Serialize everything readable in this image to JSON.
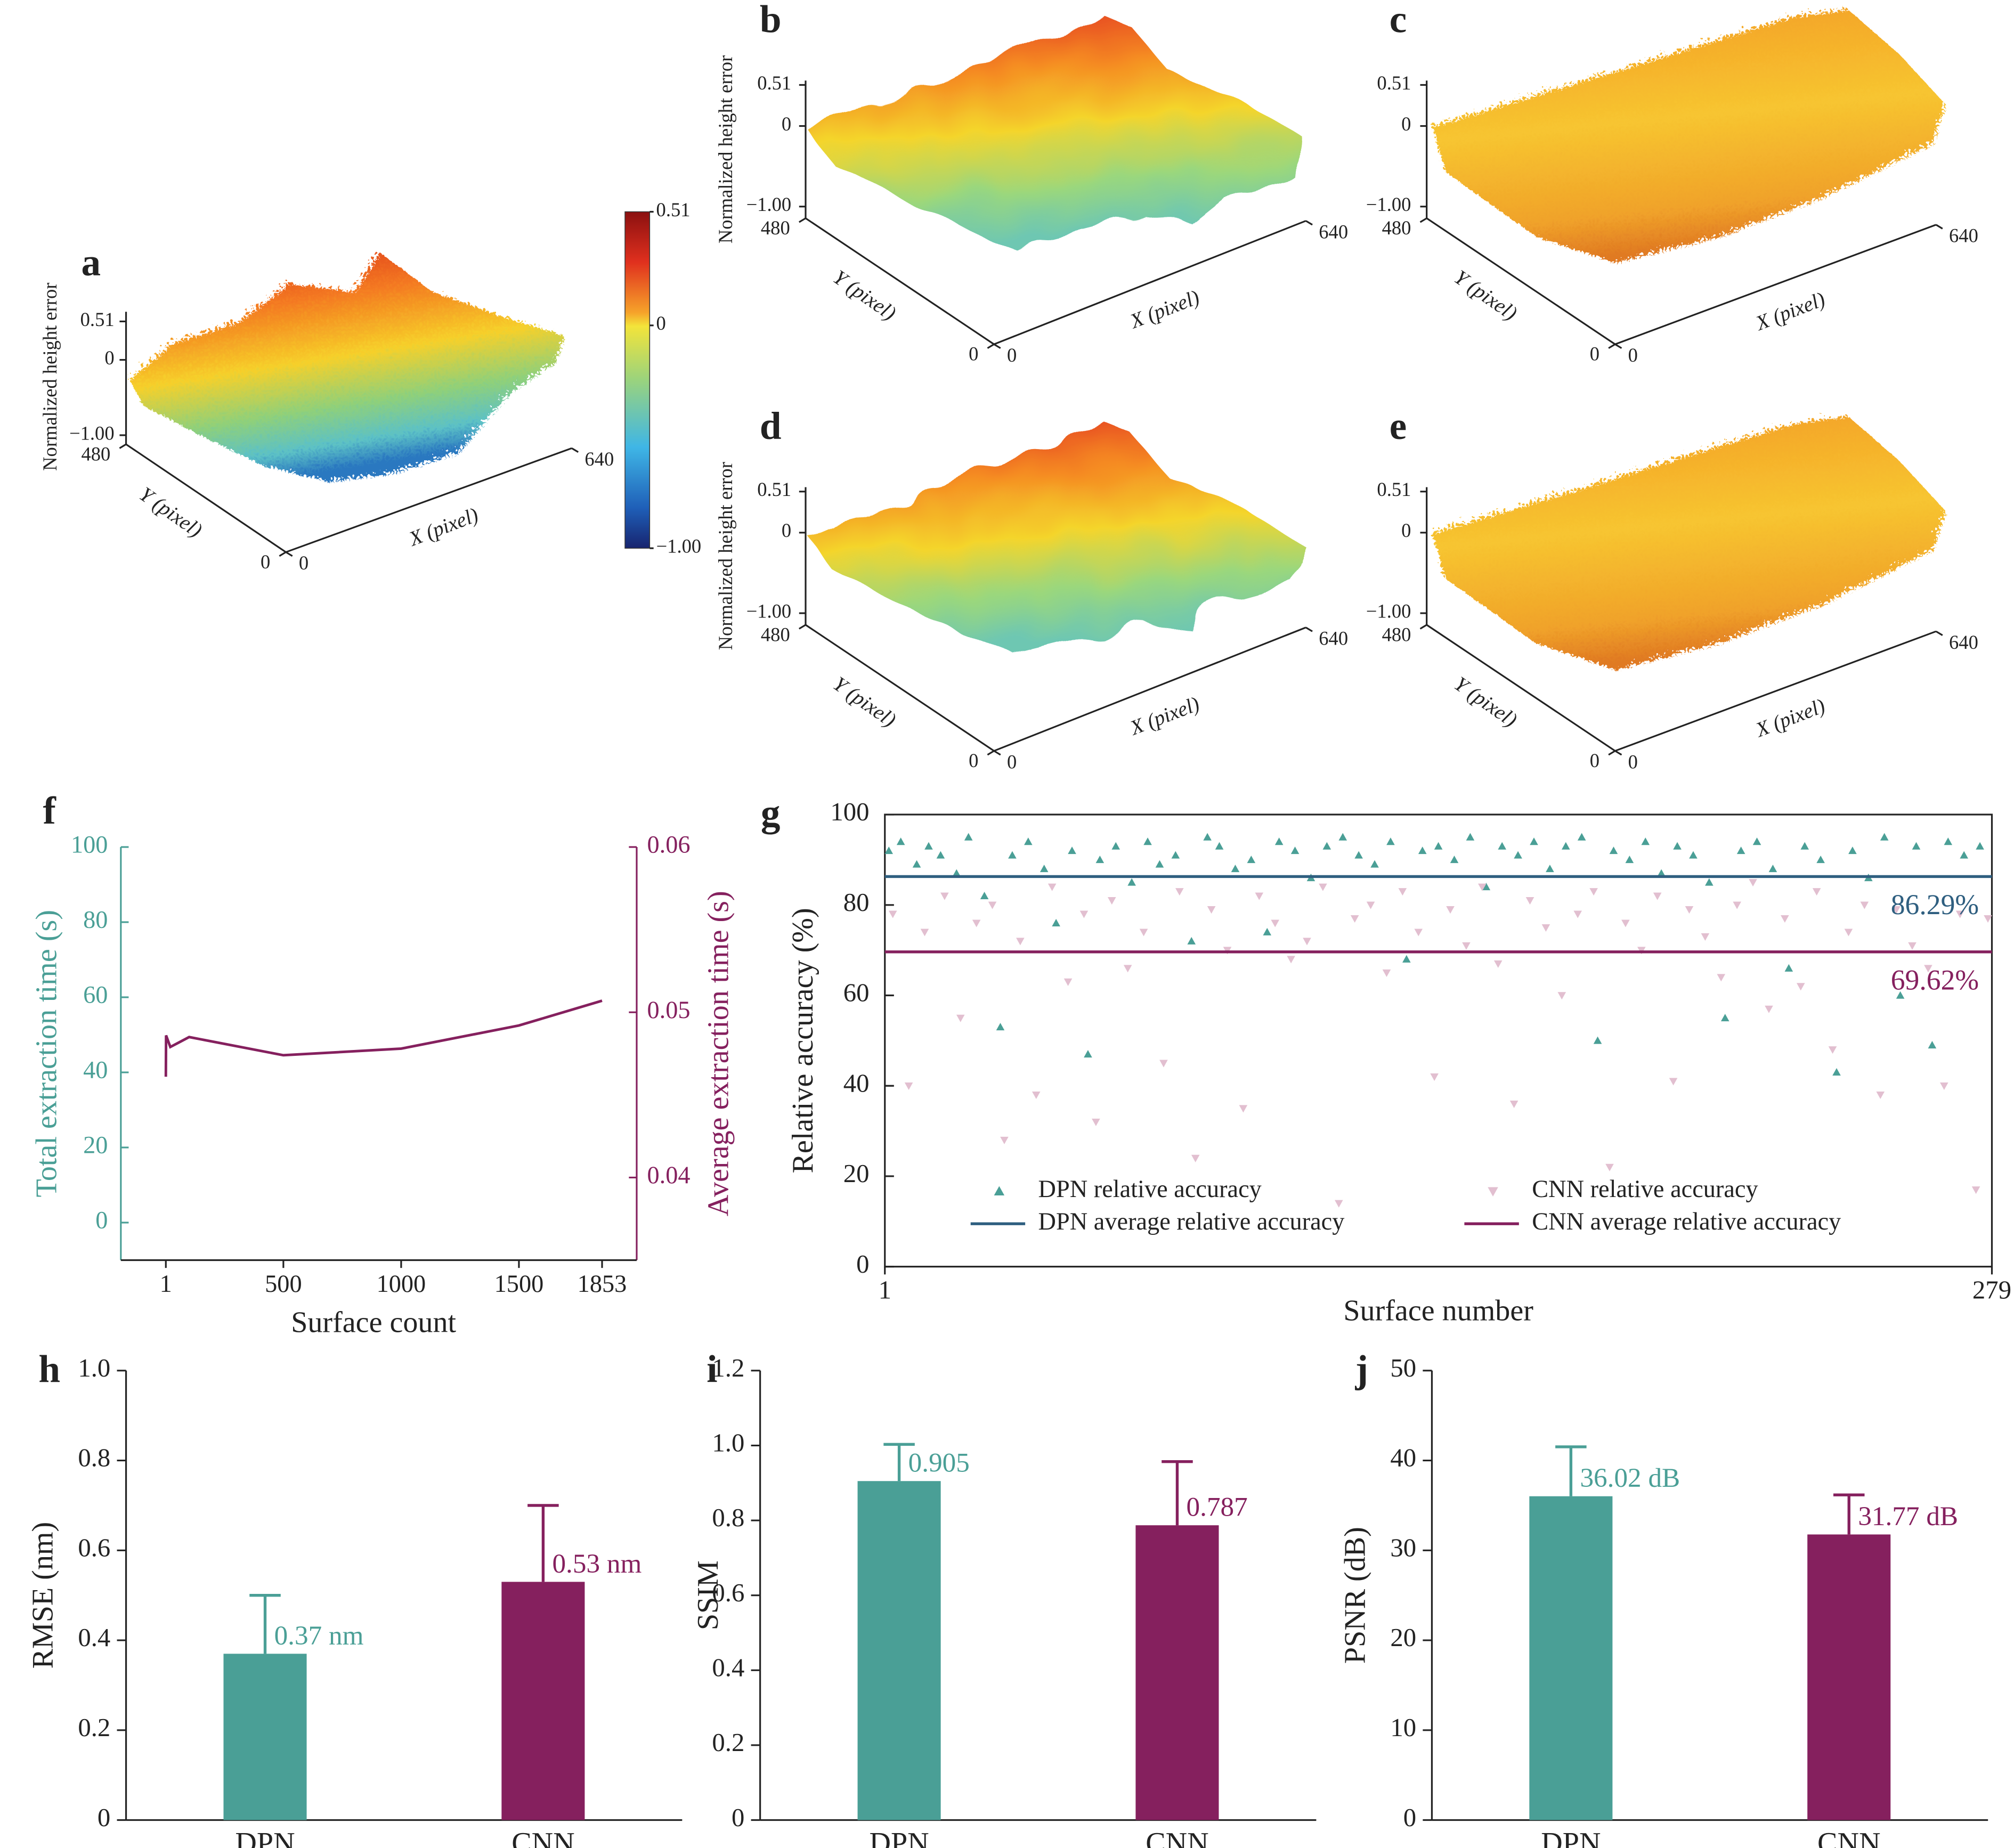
{
  "chart_data": [
    {
      "type": "surface",
      "panel": "a",
      "zlabel": "Normalized height error",
      "zticks": [
        0.51,
        0,
        {
          "value": -1,
          "label": "−1.00"
        }
      ],
      "yticks": [
        0,
        480
      ],
      "xticks": [
        0,
        640
      ],
      "ylabel": "Y (pixel)",
      "xlabel": "X (pixel)",
      "colorbar": {
        "ticks": [
          0.51,
          0,
          {
            "value": -1,
            "label": "−1.00"
          }
        ]
      }
    },
    {
      "type": "surface",
      "panel": "b",
      "zlabel": "Normalized height error",
      "zticks": [
        0.51,
        0,
        {
          "value": -1,
          "label": "−1.00"
        }
      ],
      "yticks": [
        0,
        480
      ],
      "xticks": [
        0,
        640
      ],
      "ylabel": "Y (pixel)",
      "xlabel": "X (pixel)"
    },
    {
      "type": "surface",
      "panel": "c",
      "zticks": [
        0.51,
        0,
        {
          "value": -1,
          "label": "−1.00"
        }
      ],
      "yticks": [
        0,
        480
      ],
      "xticks": [
        0,
        640
      ],
      "ylabel": "Y (pixel)",
      "xlabel": "X (pixel)"
    },
    {
      "type": "surface",
      "panel": "d",
      "zlabel": "Normalized height error",
      "zticks": [
        0.51,
        0,
        {
          "value": -1,
          "label": "−1.00"
        }
      ],
      "yticks": [
        0,
        480
      ],
      "xticks": [
        0,
        640
      ],
      "ylabel": "Y (pixel)",
      "xlabel": "X (pixel)"
    },
    {
      "type": "surface",
      "panel": "e",
      "zticks": [
        0.51,
        0,
        {
          "value": -1,
          "label": "−1.00"
        }
      ],
      "yticks": [
        0,
        480
      ],
      "xticks": [
        0,
        640
      ],
      "ylabel": "Y (pixel)",
      "xlabel": "X (pixel)"
    },
    {
      "type": "line",
      "panel": "f",
      "xlabel": "Surface count",
      "ylabel": "Total extraction time (s)",
      "y2label": "Average extraction time (s)",
      "y_color": "#4a9f96",
      "y2_color": "#85205e",
      "x": [
        1,
        2,
        20,
        60,
        100,
        500,
        1000,
        1500,
        1853
      ],
      "series": [
        {
          "color": "#85205e",
          "axis": "y2",
          "values": [
            0.0461,
            0.0486,
            0.0479,
            0.0482,
            0.0485,
            0.0474,
            0.0478,
            0.0492,
            0.0507
          ]
        }
      ],
      "xlim": [
        -190,
        2000
      ],
      "xticks": [
        1,
        500,
        1000,
        1500,
        1853
      ],
      "ylim": [
        -10,
        100
      ],
      "yticks": [
        0,
        20,
        40,
        60,
        80,
        100
      ],
      "y2lim": [
        0.035,
        0.06
      ],
      "y2ticks": [
        0.04,
        0.05,
        0.06
      ]
    },
    {
      "type": "scatter",
      "panel": "g",
      "xlabel": "Surface number",
      "ylabel": "Relative accuracy (%)",
      "xlim": [
        1,
        279
      ],
      "xticks": [
        1,
        279
      ],
      "ylim": [
        0,
        100
      ],
      "yticks": [
        0,
        20,
        40,
        60,
        80,
        100
      ],
      "legend": "lower center",
      "series": [
        {
          "name": "DPN relative accuracy",
          "color": "#4a9f96",
          "marker": "triangle-up",
          "x": [
            2,
            5,
            9,
            12,
            15,
            19,
            22,
            26,
            30,
            33,
            37,
            41,
            44,
            48,
            52,
            55,
            59,
            63,
            67,
            70,
            74,
            78,
            82,
            85,
            89,
            93,
            97,
            100,
            104,
            108,
            112,
            116,
            120,
            124,
            128,
            132,
            136,
            140,
            144,
            148,
            152,
            156,
            160,
            164,
            168,
            172,
            176,
            180,
            184,
            188,
            192,
            196,
            200,
            204,
            208,
            212,
            216,
            220,
            224,
            228,
            232,
            236,
            240,
            244,
            248,
            252,
            256,
            260,
            264,
            268,
            272,
            276
          ],
          "values": [
            92,
            94,
            89,
            93,
            91,
            87,
            95,
            82,
            53,
            91,
            94,
            88,
            76,
            92,
            47,
            90,
            93,
            85,
            94,
            89,
            91,
            72,
            95,
            93,
            88,
            90,
            74,
            94,
            92,
            86,
            93,
            95,
            91,
            89,
            94,
            68,
            92,
            93,
            90,
            95,
            84,
            93,
            91,
            94,
            88,
            93,
            95,
            50,
            92,
            90,
            94,
            87,
            93,
            91,
            85,
            55,
            92,
            94,
            88,
            66,
            93,
            90,
            43,
            92,
            86,
            95,
            60,
            93,
            49,
            94,
            91,
            93
          ]
        },
        {
          "name": "CNN relative accuracy",
          "color": "#e2bfd0",
          "marker": "triangle-down",
          "x": [
            3,
            7,
            11,
            16,
            20,
            24,
            28,
            31,
            35,
            39,
            43,
            47,
            51,
            54,
            58,
            62,
            66,
            71,
            75,
            79,
            83,
            87,
            91,
            95,
            99,
            103,
            107,
            111,
            115,
            119,
            123,
            127,
            131,
            135,
            139,
            143,
            147,
            151,
            155,
            159,
            163,
            167,
            171,
            175,
            179,
            183,
            187,
            191,
            195,
            199,
            203,
            207,
            211,
            215,
            219,
            223,
            227,
            231,
            235,
            239,
            243,
            247,
            251,
            255,
            259,
            263,
            267,
            271,
            275,
            278
          ],
          "values": [
            78,
            40,
            74,
            82,
            55,
            76,
            80,
            28,
            72,
            38,
            84,
            63,
            78,
            32,
            81,
            66,
            74,
            45,
            83,
            24,
            79,
            70,
            35,
            82,
            76,
            68,
            72,
            84,
            14,
            77,
            80,
            65,
            83,
            74,
            42,
            79,
            71,
            84,
            67,
            36,
            81,
            75,
            60,
            78,
            83,
            22,
            76,
            70,
            82,
            41,
            79,
            73,
            64,
            80,
            85,
            57,
            77,
            62,
            83,
            48,
            74,
            80,
            38,
            79,
            71,
            66,
            40,
            78,
            17,
            77
          ]
        }
      ],
      "reference_lines": [
        {
          "name": "DPN average relative accuracy",
          "color": "#2f5f80",
          "value": 86.29,
          "value_label": "86.29%"
        },
        {
          "name": "CNN average relative accuracy",
          "color": "#85205e",
          "value": 69.62,
          "value_label": "69.62%"
        }
      ]
    },
    {
      "type": "bar",
      "panel": "h",
      "ylabel": "RMSE (nm)",
      "categories": [
        "DPN",
        "CNN"
      ],
      "values": [
        0.37,
        0.53
      ],
      "errors": [
        0.13,
        0.17
      ],
      "value_labels": [
        "0.37 nm",
        "0.53 nm"
      ],
      "colors": [
        "#4a9f96",
        "#85205e"
      ],
      "ylim": [
        0,
        1
      ],
      "yticks": [
        0,
        0.2,
        0.4,
        0.6,
        0.8,
        {
          "value": 1,
          "label": "1.0"
        }
      ]
    },
    {
      "type": "bar",
      "panel": "i",
      "ylabel": "SSIM",
      "categories": [
        "DPN",
        "CNN"
      ],
      "values": [
        0.905,
        0.787
      ],
      "errors": [
        0.098,
        0.17
      ],
      "colors": [
        "#4a9f96",
        "#85205e"
      ],
      "ylim": [
        0,
        1.2
      ],
      "yticks": [
        0,
        0.2,
        0.4,
        0.6,
        0.8,
        {
          "value": 1,
          "label": "1.0"
        },
        1.2
      ]
    },
    {
      "type": "bar",
      "panel": "j",
      "ylabel": "PSNR (dB)",
      "categories": [
        "DPN",
        "CNN"
      ],
      "values": [
        36.02,
        31.77
      ],
      "errors": [
        5.5,
        4.4
      ],
      "value_labels": [
        "36.02 dB",
        "31.77 dB"
      ],
      "colors": [
        "#4a9f96",
        "#85205e"
      ],
      "ylim": [
        0,
        50
      ],
      "yticks": [
        0,
        10,
        20,
        30,
        40,
        50
      ]
    }
  ]
}
